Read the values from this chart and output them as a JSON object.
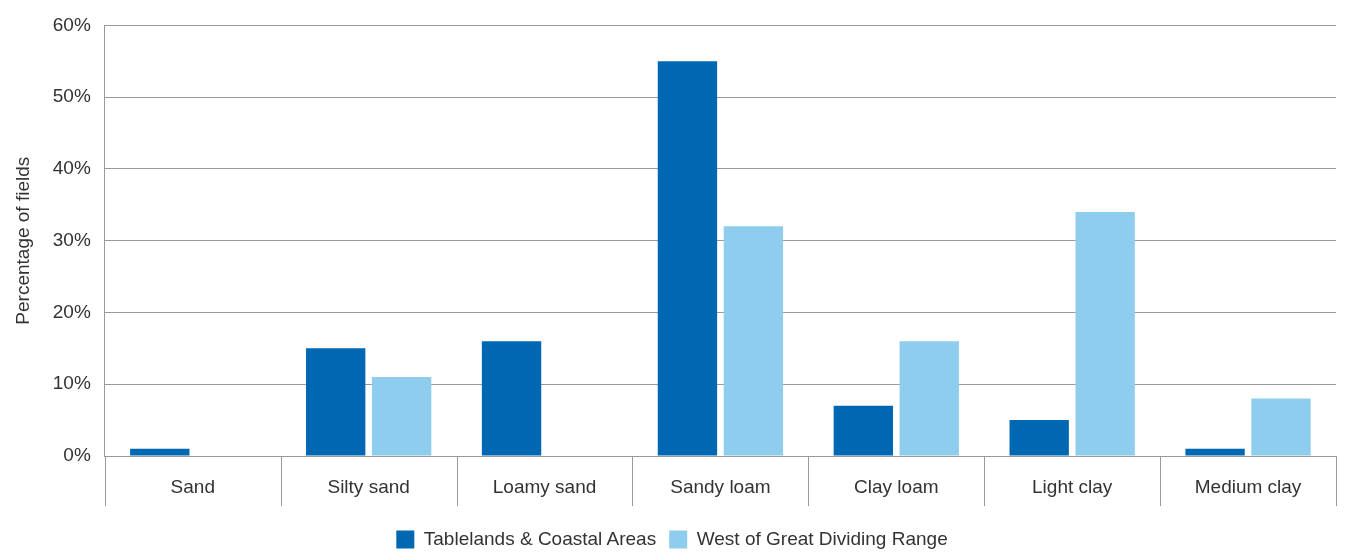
{
  "chart_data": {
    "type": "bar",
    "ylabel": "Percentage of fields",
    "categories": [
      "Sand",
      "Silty sand",
      "Loamy sand",
      "Sandy loam",
      "Clay loam",
      "Light clay",
      "Medium clay"
    ],
    "series": [
      {
        "name": "Tablelands & Coastal Areas",
        "color": "#0068b3",
        "values": [
          1,
          15,
          16,
          55,
          7,
          5,
          1
        ]
      },
      {
        "name": "West of Great Dividing Range",
        "color": "#8ecdee",
        "values": [
          0,
          11,
          0,
          32,
          16,
          34,
          8
        ]
      }
    ],
    "ylim": [
      0,
      60
    ],
    "yticks": [
      {
        "value": 0,
        "label": "0%"
      },
      {
        "value": 10,
        "label": "10%"
      },
      {
        "value": 20,
        "label": "20%"
      },
      {
        "value": 30,
        "label": "30%"
      },
      {
        "value": 40,
        "label": "40%"
      },
      {
        "value": 50,
        "label": "50%"
      },
      {
        "value": 60,
        "label": "60%"
      }
    ],
    "grid": "y",
    "legend": "bottom"
  }
}
